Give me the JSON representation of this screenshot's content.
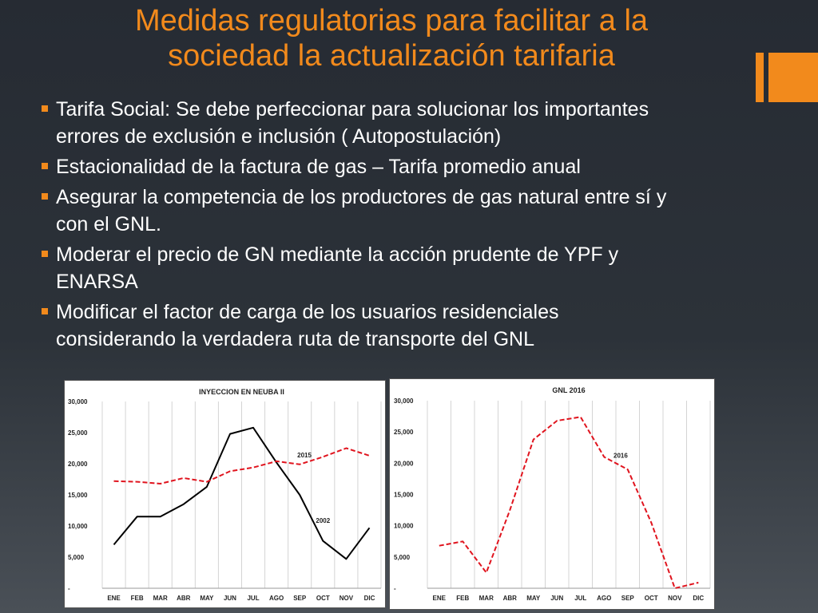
{
  "slide": {
    "title_lines": [
      "Medidas regulatorias para facilitar a la",
      "sociedad la actualización tarifaria"
    ],
    "bullets": [
      {
        "lines": [
          "Tarifa Social: Se debe perfeccionar para solucionar los importantes",
          "errores de exclusión e inclusión ( Autopostulación)"
        ]
      },
      {
        "lines": [
          "Estacionalidad de la factura de gas – Tarifa promedio anual"
        ]
      },
      {
        "lines": [
          "Asegurar la competencia de los productores de gas natural entre sí y",
          "con el GNL."
        ]
      },
      {
        "lines": [
          "Moderar el precio de GN mediante la acción prudente de YPF y",
          "ENARSA"
        ]
      },
      {
        "lines": [
          "Modificar el factor de carga de los usuarios residenciales",
          "considerando la verdadera ruta de transporte del GNL"
        ]
      }
    ],
    "colors": {
      "accent": "#f28a1c",
      "series_solid": "#000000",
      "series_dashed": "#e0141e"
    }
  },
  "chart_data": [
    {
      "type": "line",
      "title": "INYECCION EN NEUBA II",
      "categories": [
        "ENE",
        "FEB",
        "MAR",
        "ABR",
        "MAY",
        "JUN",
        "JUL",
        "AGO",
        "SEP",
        "OCT",
        "NOV",
        "DIC"
      ],
      "y_ticks": [
        0,
        5000,
        10000,
        15000,
        20000,
        25000,
        30000
      ],
      "y_tick_labels": [
        "-",
        "5,000",
        "10,000",
        "15,000",
        "20,000",
        "25,000",
        "30,000"
      ],
      "ylim": [
        0,
        30000
      ],
      "grid": "vertical",
      "series": [
        {
          "name": "2002",
          "style": "solid",
          "color": "#000000",
          "values": [
            7000,
            11500,
            11500,
            13500,
            16300,
            24800,
            25800,
            20200,
            15000,
            7600,
            4700,
            9700
          ]
        },
        {
          "name": "2015",
          "style": "dashed",
          "color": "#e0141e",
          "values": [
            17200,
            17100,
            16800,
            17700,
            17100,
            18800,
            19400,
            20400,
            19900,
            21100,
            22500,
            21300
          ]
        }
      ],
      "labels": [
        {
          "text": "2015",
          "x_index": 8.2,
          "y": 21000
        },
        {
          "text": "2002",
          "x_index": 9,
          "y": 10500
        }
      ]
    },
    {
      "type": "line",
      "title": "GNL 2016",
      "categories": [
        "ENE",
        "FEB",
        "MAR",
        "ABR",
        "MAY",
        "JUN",
        "JUL",
        "AGO",
        "SEP",
        "OCT",
        "NOV",
        "DIC"
      ],
      "y_ticks": [
        0,
        5000,
        10000,
        15000,
        20000,
        25000,
        30000
      ],
      "y_tick_labels": [
        "-",
        "5,000",
        "10,000",
        "15,000",
        "20,000",
        "25,000",
        "30,000"
      ],
      "ylim": [
        0,
        30000
      ],
      "grid": "vertical",
      "series": [
        {
          "name": "2016",
          "style": "dashed",
          "color": "#e0141e",
          "values": [
            6800,
            7500,
            2500,
            12500,
            23800,
            26800,
            27400,
            21000,
            19000,
            10500,
            0,
            900
          ]
        }
      ],
      "labels": [
        {
          "text": "2016",
          "x_index": 7.7,
          "y": 20900
        }
      ]
    }
  ]
}
